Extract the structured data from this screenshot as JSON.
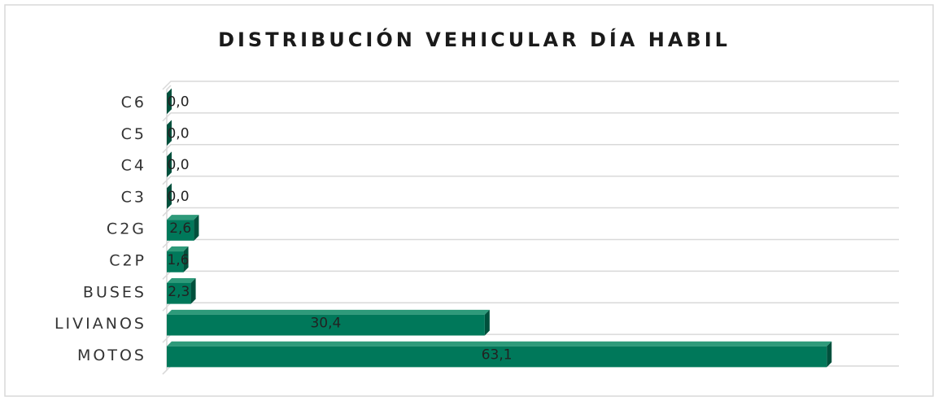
{
  "chart_data": {
    "type": "bar",
    "orientation": "horizontal",
    "title": "DISTRIBUCIÓN VEHICULAR DÍA HABIL",
    "categories": [
      "MOTOS",
      "LIVIANOS",
      "BUSES",
      "C2P",
      "C2G",
      "C3",
      "C4",
      "C5",
      "C6"
    ],
    "values": [
      63.1,
      30.4,
      2.3,
      1.6,
      2.6,
      0.0,
      0.0,
      0.0,
      0.0
    ],
    "value_labels": [
      "63,1",
      "30,4",
      "2,3",
      "1,6",
      "2,6",
      "0,0",
      "0,0",
      "0,0",
      "0,0"
    ],
    "color": "#00785a",
    "xlim": [
      0,
      70
    ]
  }
}
